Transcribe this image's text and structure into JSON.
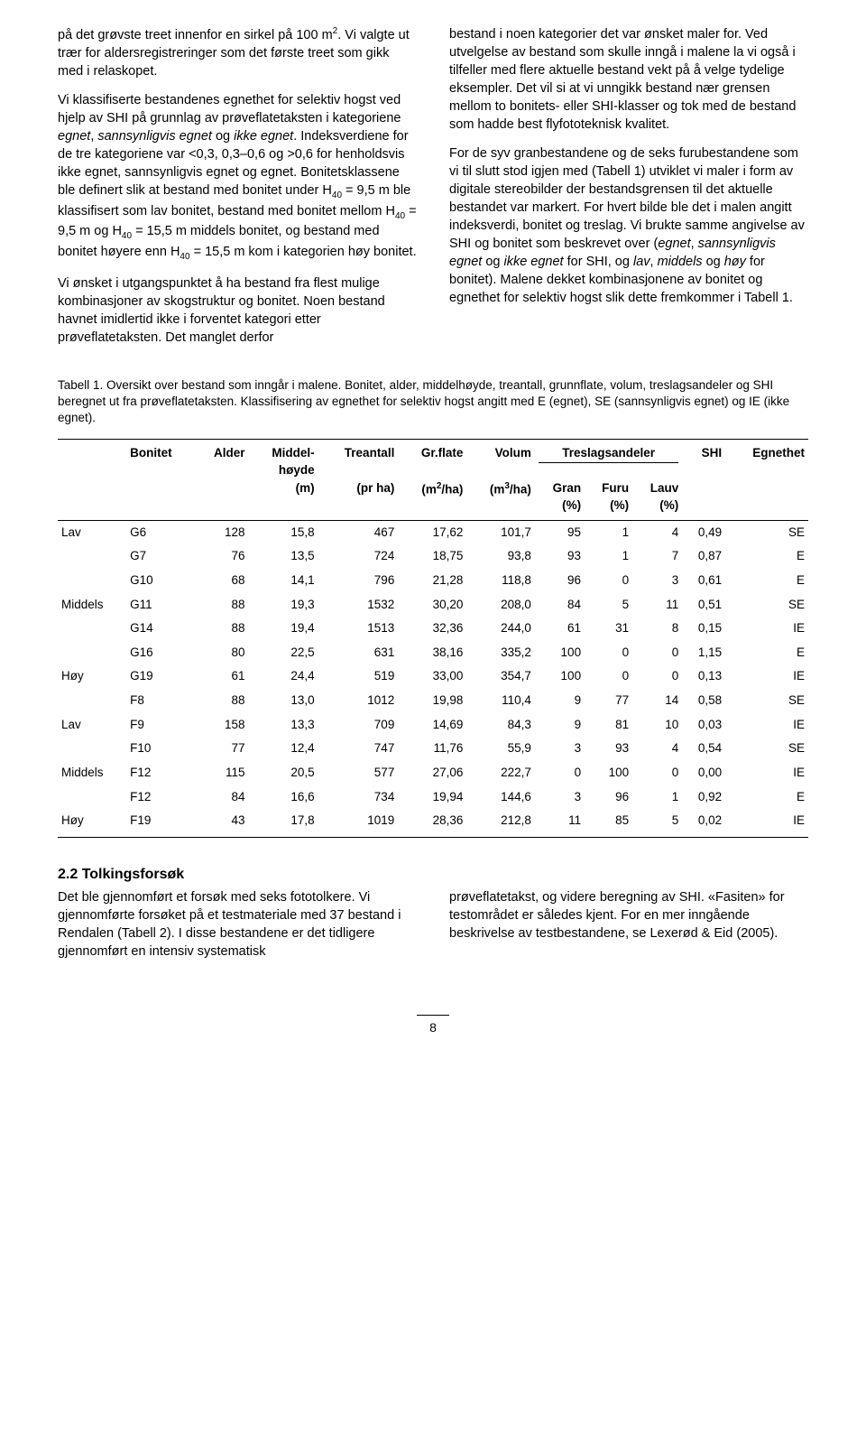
{
  "colors": {
    "text": "#000000",
    "background": "#ffffff",
    "rule": "#000000"
  },
  "typography": {
    "body_family": "Arial, Helvetica, sans-serif",
    "body_size_pt": 10.8,
    "caption_size_pt": 10,
    "heading_size_pt": 12,
    "line_height": 1.38
  },
  "top_text": {
    "left": {
      "p1a": "på det grøvste treet innenfor en sirkel på 100 m",
      "p1_sup": "2",
      "p1b": ". Vi valgte ut trær for aldersregistreringer som det første treet som gikk med i relaskopet.",
      "p2a": "Vi klassifiserte bestandenes egnethet for selektiv hogst ved hjelp av SHI på grunnlag av prøveflatetaksten i kategoriene ",
      "p2_i1": "egnet",
      "p2b": ", ",
      "p2_i2": "sannsynligvis egnet",
      "p2c": " og ",
      "p2_i3": "ikke egnet",
      "p2d": ". Indeksverdiene for de tre kategoriene var <0,3, 0,3–0,6 og >0,6 for henholdsvis ikke egnet, sannsynligvis egnet og egnet. Bonitetsklassene ble definert slik at bestand med bonitet under H",
      "p2_sub1": "40",
      "p2e": " = 9,5 m ble klassifisert som lav bonitet, bestand med bonitet mellom H",
      "p2_sub2": "40",
      "p2f": " = 9,5 m og H",
      "p2_sub3": "40",
      "p2g": " = 15,5 m middels bonitet, og bestand med bonitet høyere enn H",
      "p2_sub4": "40",
      "p2h": " = 15,5 m kom i kategorien høy bonitet.",
      "p3": "Vi ønsket i utgangspunktet å ha bestand fra flest mulige kombinasjoner av skogstruktur og bonitet. Noen bestand havnet imidlertid ikke i forventet kategori etter prøveflatetaksten. Det manglet derfor"
    },
    "right": {
      "p1": "bestand i noen kategorier det var ønsket maler for. Ved utvelgelse av bestand som skulle inngå i malene la vi også i tilfeller med flere aktuelle bestand vekt på å velge tydelige eksempler. Det vil si at vi unngikk bestand nær grensen mellom to bonitets- eller SHI-klasser og tok med de bestand som hadde best flyfototeknisk kvalitet.",
      "p2a": "For de syv granbestandene og de seks furubestandene som vi til slutt stod igjen med (Tabell 1) utviklet vi maler i form av digitale stereobilder der bestandsgrensen til det aktuelle bestandet var markert. For hvert bilde ble det i malen angitt indeksverdi, bonitet og treslag. Vi brukte samme angivelse av SHI og bonitet som beskrevet over (",
      "p2_i1": "egnet",
      "p2b": ", ",
      "p2_i2": "sannsynligvis egnet",
      "p2c": " og ",
      "p2_i3": "ikke egnet",
      "p2d": " for SHI, og ",
      "p2_i4": "lav",
      "p2e": ", ",
      "p2_i5": "middels",
      "p2f": " og ",
      "p2_i6": "høy",
      "p2g": " for bonitet). Malene dekket kombinasjonene av bonitet og egnethet for selektiv hogst slik dette fremkommer i Tabell 1."
    }
  },
  "table_caption": "Tabell 1. Oversikt over bestand som inngår i malene. Bonitet, alder, middelhøyde, treantall, grunnflate, volum, treslagsandeler og SHI beregnet ut fra prøveflatetaksten. Klassifisering av egnethet for selektiv hogst angitt med E (egnet), SE (sannsynligvis egnet) og IE (ikke egnet).",
  "table": {
    "type": "table",
    "background_color": "#ffffff",
    "rule_color": "#000000",
    "header_font_weight": "bold",
    "font_size_pt": 10,
    "columns": [
      {
        "key": "bon_group",
        "label": "",
        "width": "8%",
        "align": "left"
      },
      {
        "key": "bonitet",
        "label": "Bonitet",
        "width": "7%",
        "align": "left"
      },
      {
        "key": "alder",
        "label": "Alder",
        "width": "6%",
        "align": "right"
      },
      {
        "key": "middelhoyde",
        "label": "Middel-",
        "label2": "høyde",
        "unit": "(m)",
        "width": "8%",
        "align": "right"
      },
      {
        "key": "treantall",
        "label": "Treantall",
        "unit": "(pr ha)",
        "width": "8%",
        "align": "right"
      },
      {
        "key": "grflate",
        "label": "Gr.flate",
        "unit": "(m2/ha)",
        "width": "9%",
        "align": "right"
      },
      {
        "key": "volum",
        "label": "Volum",
        "unit": "(m3/ha)",
        "width": "9%",
        "align": "right"
      },
      {
        "key": "gran",
        "label": "Gran",
        "unit": "(%)",
        "width": "7%",
        "align": "right",
        "group": "Treslagsandeler"
      },
      {
        "key": "furu",
        "label": "Furu",
        "unit": "(%)",
        "width": "7%",
        "align": "right",
        "group": "Treslagsandeler"
      },
      {
        "key": "lauv",
        "label": "Lauv",
        "unit": "(%)",
        "width": "7%",
        "align": "right",
        "group": "Treslagsandeler"
      },
      {
        "key": "shi",
        "label": "SHI",
        "width": "7%",
        "align": "right"
      },
      {
        "key": "egnethet",
        "label": "Egnethet",
        "width": "8%",
        "align": "right"
      }
    ],
    "group_header_tresl": "Treslagsandeler",
    "rows": [
      {
        "bon_group": "Lav",
        "bonitet": "G6",
        "alder": "128",
        "middelhoyde": "15,8",
        "treantall": "467",
        "grflate": "17,62",
        "volum": "101,7",
        "gran": "95",
        "furu": "1",
        "lauv": "4",
        "shi": "0,49",
        "egnethet": "SE"
      },
      {
        "bon_group": "",
        "bonitet": "G7",
        "alder": "76",
        "middelhoyde": "13,5",
        "treantall": "724",
        "grflate": "18,75",
        "volum": "93,8",
        "gran": "93",
        "furu": "1",
        "lauv": "7",
        "shi": "0,87",
        "egnethet": "E"
      },
      {
        "bon_group": "",
        "bonitet": "G10",
        "alder": "68",
        "middelhoyde": "14,1",
        "treantall": "796",
        "grflate": "21,28",
        "volum": "118,8",
        "gran": "96",
        "furu": "0",
        "lauv": "3",
        "shi": "0,61",
        "egnethet": "E"
      },
      {
        "bon_group": "Middels",
        "bonitet": "G11",
        "alder": "88",
        "middelhoyde": "19,3",
        "treantall": "1532",
        "grflate": "30,20",
        "volum": "208,0",
        "gran": "84",
        "furu": "5",
        "lauv": "11",
        "shi": "0,51",
        "egnethet": "SE"
      },
      {
        "bon_group": "",
        "bonitet": "G14",
        "alder": "88",
        "middelhoyde": "19,4",
        "treantall": "1513",
        "grflate": "32,36",
        "volum": "244,0",
        "gran": "61",
        "furu": "31",
        "lauv": "8",
        "shi": "0,15",
        "egnethet": "IE"
      },
      {
        "bon_group": "",
        "bonitet": "G16",
        "alder": "80",
        "middelhoyde": "22,5",
        "treantall": "631",
        "grflate": "38,16",
        "volum": "335,2",
        "gran": "100",
        "furu": "0",
        "lauv": "0",
        "shi": "1,15",
        "egnethet": "E"
      },
      {
        "bon_group": "Høy",
        "bonitet": "G19",
        "alder": "61",
        "middelhoyde": "24,4",
        "treantall": "519",
        "grflate": "33,00",
        "volum": "354,7",
        "gran": "100",
        "furu": "0",
        "lauv": "0",
        "shi": "0,13",
        "egnethet": "IE"
      },
      {
        "bon_group": "",
        "bonitet": "F8",
        "alder": "88",
        "middelhoyde": "13,0",
        "treantall": "1012",
        "grflate": "19,98",
        "volum": "110,4",
        "gran": "9",
        "furu": "77",
        "lauv": "14",
        "shi": "0,58",
        "egnethet": "SE"
      },
      {
        "bon_group": "Lav",
        "bonitet": "F9",
        "alder": "158",
        "middelhoyde": "13,3",
        "treantall": "709",
        "grflate": "14,69",
        "volum": "84,3",
        "gran": "9",
        "furu": "81",
        "lauv": "10",
        "shi": "0,03",
        "egnethet": "IE"
      },
      {
        "bon_group": "",
        "bonitet": "F10",
        "alder": "77",
        "middelhoyde": "12,4",
        "treantall": "747",
        "grflate": "11,76",
        "volum": "55,9",
        "gran": "3",
        "furu": "93",
        "lauv": "4",
        "shi": "0,54",
        "egnethet": "SE"
      },
      {
        "bon_group": "Middels",
        "bonitet": "F12",
        "alder": "115",
        "middelhoyde": "20,5",
        "treantall": "577",
        "grflate": "27,06",
        "volum": "222,7",
        "gran": "0",
        "furu": "100",
        "lauv": "0",
        "shi": "0,00",
        "egnethet": "IE"
      },
      {
        "bon_group": "",
        "bonitet": "F12",
        "alder": "84",
        "middelhoyde": "16,6",
        "treantall": "734",
        "grflate": "19,94",
        "volum": "144,6",
        "gran": "3",
        "furu": "96",
        "lauv": "1",
        "shi": "0,92",
        "egnethet": "E"
      },
      {
        "bon_group": "Høy",
        "bonitet": "F19",
        "alder": "43",
        "middelhoyde": "17,8",
        "treantall": "1019",
        "grflate": "28,36",
        "volum": "212,8",
        "gran": "11",
        "furu": "85",
        "lauv": "5",
        "shi": "0,02",
        "egnethet": "IE"
      }
    ]
  },
  "section2": {
    "heading": "2.2 Tolkingsforsøk",
    "left": "Det ble gjennomført et forsøk med seks fototolkere. Vi gjennomførte forsøket på et testmateriale med 37 bestand i Rendalen (Tabell 2). I disse bestandene er det tidligere gjennomført en intensiv systematisk",
    "right": "prøveflatetakst, og videre beregning av SHI. «Fasiten» for testområdet er således kjent. For en mer inngående beskrivelse av testbestandene, se Lexerød & Eid (2005)."
  },
  "page_number": "8"
}
